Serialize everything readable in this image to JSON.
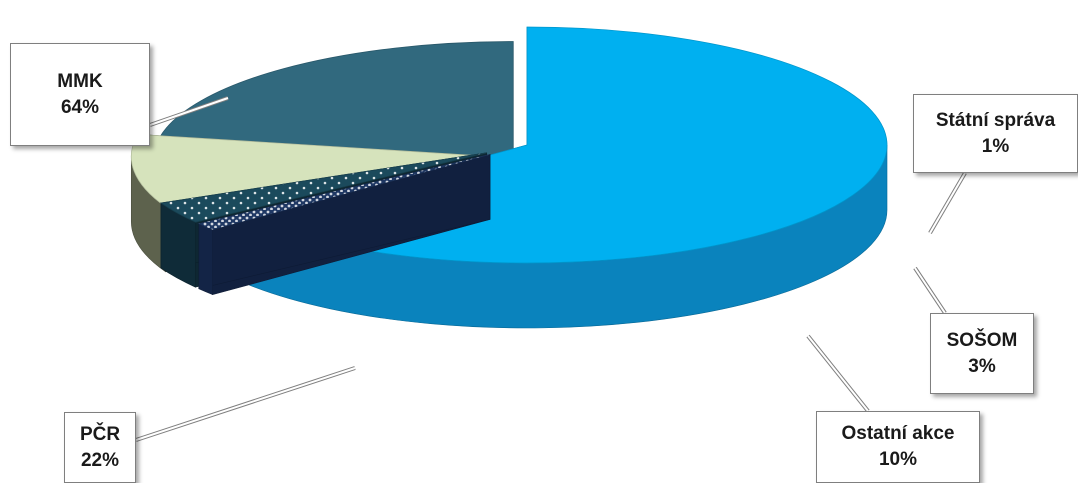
{
  "chart_data": {
    "type": "pie",
    "style": "3d-exploded",
    "slices": [
      {
        "label": "MMK",
        "value": 64,
        "value_text": "64%",
        "color": "#00b0f0"
      },
      {
        "label": "Státní správa",
        "value": 1,
        "value_text": "1%",
        "color": "#1f3864"
      },
      {
        "label": "SOŠOM",
        "value": 3,
        "value_text": "3%",
        "color": "#1b4a5c"
      },
      {
        "label": "Ostatní akce",
        "value": 10,
        "value_text": "10%",
        "color": "#d6e3bc"
      },
      {
        "label": "PČR",
        "value": 22,
        "value_text": "22%",
        "color": "#31697e"
      }
    ],
    "legend": "none",
    "data_labels": "callouts with category and percentage"
  }
}
